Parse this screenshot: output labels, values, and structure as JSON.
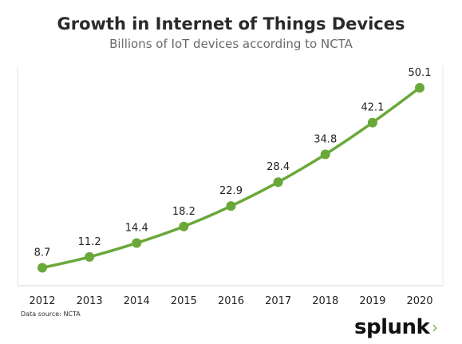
{
  "chart_data": {
    "type": "line",
    "title": "Growth in Internet of Things Devices",
    "subtitle": "Billions of IoT devices according to NCTA",
    "x": [
      "2012",
      "2013",
      "2014",
      "2015",
      "2016",
      "2017",
      "2018",
      "2019",
      "2020"
    ],
    "series": [
      {
        "values": [
          8.7,
          11.2,
          14.4,
          18.2,
          22.9,
          28.4,
          34.8,
          42.1,
          50.1
        ]
      }
    ],
    "data_labels": [
      "8.7",
      "11.2",
      "14.4",
      "18.2",
      "22.9",
      "28.4",
      "34.8",
      "42.1",
      "50.1"
    ],
    "xlabel": "",
    "ylabel": "",
    "ylim": [
      0,
      52
    ],
    "grid": false,
    "line_color": "#6aa83a"
  },
  "footer": {
    "source": "Data source: NCTA",
    "logo": "splunk"
  }
}
